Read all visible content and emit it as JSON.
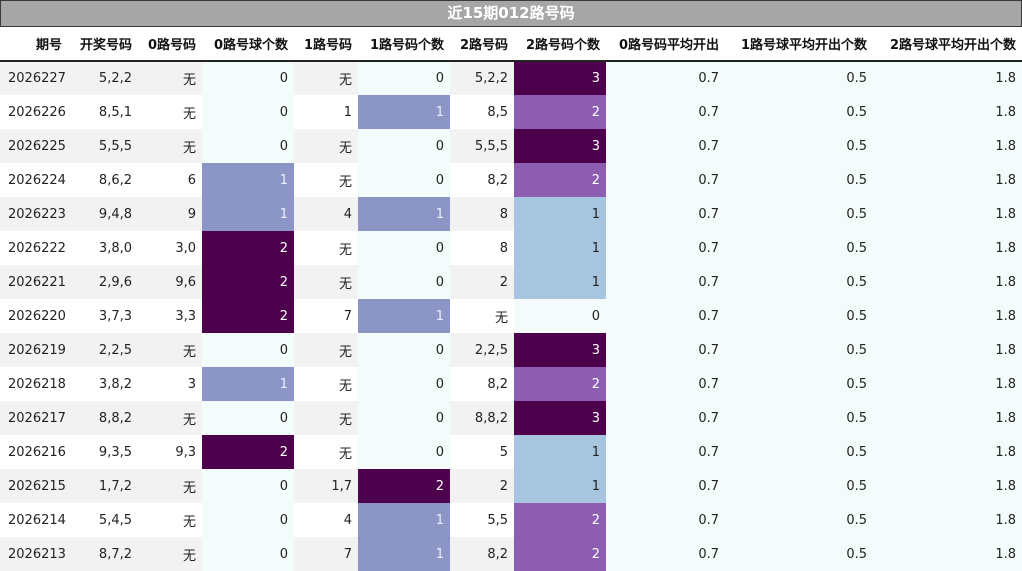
{
  "chart_data": {
    "type": "table",
    "title": "近15期012路号码",
    "columns": [
      "期号",
      "开奖号码",
      "0路号码",
      "0路号球个数",
      "1路号码",
      "1路号码个数",
      "2路号码",
      "2路号码个数",
      "0路号码平均开出",
      "1路号球平均开出个数",
      "2路号球平均开出个数"
    ],
    "rows": [
      [
        "2026227",
        "5,2,2",
        "无",
        "0",
        "无",
        "0",
        "5,2,2",
        "3",
        "0.7",
        "0.5",
        "1.8"
      ],
      [
        "2026226",
        "8,5,1",
        "无",
        "0",
        "1",
        "1",
        "8,5",
        "2",
        "0.7",
        "0.5",
        "1.8"
      ],
      [
        "2026225",
        "5,5,5",
        "无",
        "0",
        "无",
        "0",
        "5,5,5",
        "3",
        "0.7",
        "0.5",
        "1.8"
      ],
      [
        "2026224",
        "8,6,2",
        "6",
        "1",
        "无",
        "0",
        "8,2",
        "2",
        "0.7",
        "0.5",
        "1.8"
      ],
      [
        "2026223",
        "9,4,8",
        "9",
        "1",
        "4",
        "1",
        "8",
        "1",
        "0.7",
        "0.5",
        "1.8"
      ],
      [
        "2026222",
        "3,8,0",
        "3,0",
        "2",
        "无",
        "0",
        "8",
        "1",
        "0.7",
        "0.5",
        "1.8"
      ],
      [
        "2026221",
        "2,9,6",
        "9,6",
        "2",
        "无",
        "0",
        "2",
        "1",
        "0.7",
        "0.5",
        "1.8"
      ],
      [
        "2026220",
        "3,7,3",
        "3,3",
        "2",
        "7",
        "1",
        "无",
        "0",
        "0.7",
        "0.5",
        "1.8"
      ],
      [
        "2026219",
        "2,2,5",
        "无",
        "0",
        "无",
        "0",
        "2,2,5",
        "3",
        "0.7",
        "0.5",
        "1.8"
      ],
      [
        "2026218",
        "3,8,2",
        "3",
        "1",
        "无",
        "0",
        "8,2",
        "2",
        "0.7",
        "0.5",
        "1.8"
      ],
      [
        "2026217",
        "8,8,2",
        "无",
        "0",
        "无",
        "0",
        "8,8,2",
        "3",
        "0.7",
        "0.5",
        "1.8"
      ],
      [
        "2026216",
        "9,3,5",
        "9,3",
        "2",
        "无",
        "0",
        "5",
        "1",
        "0.7",
        "0.5",
        "1.8"
      ],
      [
        "2026215",
        "1,7,2",
        "无",
        "0",
        "1,7",
        "2",
        "2",
        "1",
        "0.7",
        "0.5",
        "1.8"
      ],
      [
        "2026214",
        "5,4,5",
        "无",
        "0",
        "4",
        "1",
        "5,5",
        "2",
        "0.7",
        "0.5",
        "1.8"
      ],
      [
        "2026213",
        "8,7,2",
        "无",
        "0",
        "7",
        "1",
        "8,2",
        "2",
        "0.7",
        "0.5",
        "1.8"
      ]
    ]
  },
  "colors": {
    "title_bar": "#a6a6a6",
    "count_scale": {
      "0": "#f4fbfb",
      "1": "#8c96c6",
      "2": "#4d004b"
    },
    "count2_scale": {
      "0": "#f4fbfb",
      "1": "#a8c5e0",
      "2": "#8c5db0",
      "3": "#4d004b"
    }
  }
}
